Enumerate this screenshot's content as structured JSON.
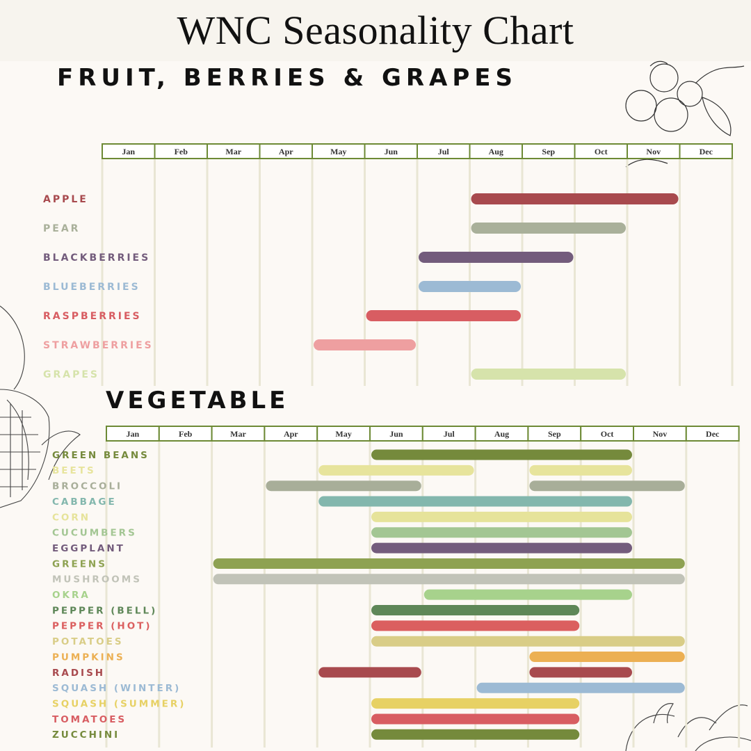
{
  "page": {
    "title": "WNC Seasonality Chart",
    "background": "#fcf9f5"
  },
  "chart_data": [
    {
      "type": "bar",
      "subtype": "gantt",
      "title": "FRUIT, BERRIES & GRAPES",
      "x_axis": [
        "Jan",
        "Feb",
        "Mar",
        "Apr",
        "May",
        "Jun",
        "Jul",
        "Aug",
        "Sep",
        "Oct",
        "Nov",
        "Dec"
      ],
      "grid": true,
      "series": [
        {
          "name": "APPLE",
          "ranges": [
            [
              8,
              11
            ]
          ],
          "color": "#a84a4e"
        },
        {
          "name": "PEAR",
          "ranges": [
            [
              8,
              10
            ]
          ],
          "color": "#a9b09a"
        },
        {
          "name": "BLACKBERRIES",
          "ranges": [
            [
              7,
              9
            ]
          ],
          "color": "#735c7c"
        },
        {
          "name": "BLUEBERRIES",
          "ranges": [
            [
              7,
              8
            ]
          ],
          "color": "#9cbad4"
        },
        {
          "name": "RASPBERRIES",
          "ranges": [
            [
              6,
              8
            ]
          ],
          "color": "#d85d62"
        },
        {
          "name": "STRAWBERRIES",
          "ranges": [
            [
              5,
              6
            ]
          ],
          "color": "#ee9fa0"
        },
        {
          "name": "GRAPES",
          "ranges": [
            [
              8,
              10
            ]
          ],
          "color": "#d6e3ab"
        }
      ]
    },
    {
      "type": "bar",
      "subtype": "gantt",
      "title": "VEGETABLE",
      "x_axis": [
        "Jan",
        "Feb",
        "Mar",
        "Apr",
        "May",
        "Jun",
        "Jul",
        "Aug",
        "Sep",
        "Oct",
        "Nov",
        "Dec"
      ],
      "grid": true,
      "series": [
        {
          "name": "GREEN BEANS",
          "ranges": [
            [
              6,
              10
            ]
          ],
          "color": "#758a3c"
        },
        {
          "name": "BEETS",
          "ranges": [
            [
              5,
              7
            ],
            [
              9,
              10
            ]
          ],
          "color": "#e7e49c"
        },
        {
          "name": "BROCCOLI",
          "ranges": [
            [
              4,
              6
            ],
            [
              9,
              11
            ]
          ],
          "color": "#a8ae99"
        },
        {
          "name": "CABBAGE",
          "ranges": [
            [
              5,
              10
            ]
          ],
          "color": "#83b7ad"
        },
        {
          "name": "CORN",
          "ranges": [
            [
              6,
              10
            ]
          ],
          "color": "#e6e39a"
        },
        {
          "name": "CUCUMBERS",
          "ranges": [
            [
              6,
              10
            ]
          ],
          "color": "#a3c693"
        },
        {
          "name": "EGGPLANT",
          "ranges": [
            [
              6,
              10
            ]
          ],
          "color": "#735c7c"
        },
        {
          "name": "GREENS",
          "ranges": [
            [
              3,
              11
            ]
          ],
          "color": "#8ea252"
        },
        {
          "name": "MUSHROOMS",
          "ranges": [
            [
              3,
              11
            ]
          ],
          "color": "#c1c3b8"
        },
        {
          "name": "OKRA",
          "ranges": [
            [
              7,
              10
            ]
          ],
          "color": "#a7d28c"
        },
        {
          "name": "PEPPER (BELL)",
          "ranges": [
            [
              6,
              9
            ]
          ],
          "color": "#5e8758"
        },
        {
          "name": "PEPPER (HOT)",
          "ranges": [
            [
              6,
              9
            ]
          ],
          "color": "#db5f5f"
        },
        {
          "name": "POTATOES",
          "ranges": [
            [
              6,
              11
            ]
          ],
          "color": "#d9cd87"
        },
        {
          "name": "PUMPKINS",
          "ranges": [
            [
              9,
              11
            ]
          ],
          "color": "#ecb053"
        },
        {
          "name": "RADISH",
          "ranges": [
            [
              5,
              6
            ],
            [
              9,
              10
            ]
          ],
          "color": "#a84a4e"
        },
        {
          "name": "SQUASH (WINTER)",
          "ranges": [
            [
              8,
              11
            ]
          ],
          "color": "#9cbad4"
        },
        {
          "name": "SQUASH (SUMMER)",
          "ranges": [
            [
              6,
              9
            ]
          ],
          "color": "#e7d164"
        },
        {
          "name": "TOMATOES",
          "ranges": [
            [
              6,
              9
            ]
          ],
          "color": "#d85d62"
        },
        {
          "name": "ZUCCHINI",
          "ranges": [
            [
              6,
              9
            ]
          ],
          "color": "#758a3c"
        }
      ]
    }
  ]
}
